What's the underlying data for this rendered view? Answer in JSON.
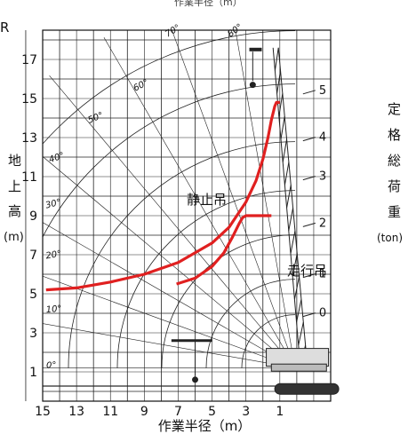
{
  "header_fragment": "作業半径（m）",
  "corner_letter": "R",
  "chart_data": {
    "type": "line",
    "title": "",
    "xlabel": "作業半径（m）",
    "ylabel_chars": [
      "地",
      "上",
      "高"
    ],
    "ylabel_unit": "(m)",
    "right_label_chars": [
      "定",
      "格",
      "総",
      "荷",
      "重"
    ],
    "right_unit": "(ton)",
    "x_ticks": [
      "15",
      "13",
      "11",
      "9",
      "7",
      "5",
      "3",
      "1"
    ],
    "x_tick_values": [
      15,
      13,
      11,
      9,
      7,
      5,
      3,
      1
    ],
    "y_ticks": [
      "1",
      "3",
      "5",
      "7",
      "9",
      "11",
      "13",
      "15",
      "17"
    ],
    "y_tick_values": [
      1,
      3,
      5,
      7,
      9,
      11,
      13,
      15,
      17
    ],
    "load_ticks": [
      "0",
      "1",
      "2",
      "3",
      "4",
      "5"
    ],
    "load_tick_values": [
      0,
      1,
      2,
      3,
      4,
      5
    ],
    "boom_angles": [
      "0°",
      "10°",
      "20°",
      "30°",
      "40°",
      "50°",
      "60°",
      "70°",
      "80°"
    ],
    "boom_angle_values": [
      0,
      10,
      20,
      30,
      40,
      50,
      60,
      70,
      80
    ],
    "xlim": [
      15,
      -2
    ],
    "ylim": [
      -0.5,
      18.5
    ],
    "series": [
      {
        "name": "静止吊",
        "color": "#e02020",
        "x": [
          14.8,
          13,
          11,
          9,
          7,
          5,
          4,
          3,
          2.4,
          2,
          1.7,
          1.5,
          1.3,
          1.2,
          1.0
        ],
        "y": [
          5.2,
          5.3,
          5.6,
          6.0,
          6.6,
          7.6,
          8.4,
          9.7,
          10.8,
          11.9,
          13.0,
          13.9,
          14.6,
          14.8,
          14.8
        ]
      },
      {
        "name": "走行吊",
        "color": "#e02020",
        "x": [
          7.1,
          6.0,
          5.0,
          4.3,
          3.8,
          3.4,
          3.2,
          3.0,
          2.6,
          2.0,
          1.5
        ],
        "y": [
          5.5,
          5.8,
          6.4,
          7.1,
          7.9,
          8.6,
          8.9,
          9.0,
          9.0,
          9.0,
          9.0
        ]
      }
    ],
    "grid": true
  }
}
